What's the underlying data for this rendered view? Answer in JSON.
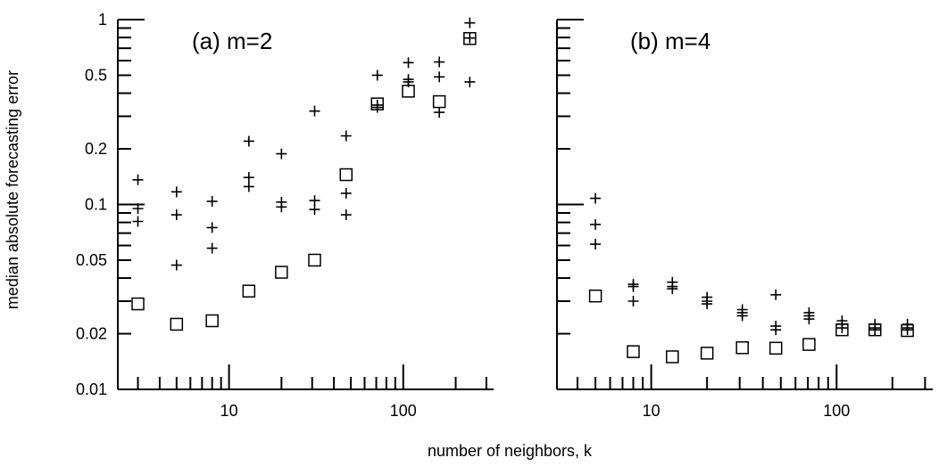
{
  "ylabel": "median absolute forecasting error",
  "xlabel": "number of neighbors, k",
  "colors": {
    "ink": "#000000",
    "background": "#ffffff"
  },
  "chart_data": [
    {
      "type": "scatter",
      "title": "(a) m=2",
      "xscale": "log",
      "yscale": "log",
      "xlim": [
        2.3,
        330
      ],
      "ylim": [
        0.01,
        1
      ],
      "x_ticks": [
        10,
        100
      ],
      "x_tick_labels": [
        "10",
        "100"
      ],
      "y_ticks": [
        1,
        0.5,
        0.2,
        0.1,
        0.05,
        0.02,
        0.01
      ],
      "y_tick_labels": [
        "1",
        "0.5",
        "0.2",
        "0.1",
        "0.05",
        "0.02",
        "0.01"
      ],
      "grid": false,
      "series": [
        {
          "marker": "plus",
          "points": [
            [
              3,
              0.136
            ],
            [
              3,
              0.095
            ],
            [
              3,
              0.081
            ],
            [
              5,
              0.117
            ],
            [
              5,
              0.088
            ],
            [
              5,
              0.047
            ],
            [
              8,
              0.104
            ],
            [
              8,
              0.075
            ],
            [
              8,
              0.058
            ],
            [
              13,
              0.22
            ],
            [
              13,
              0.14
            ],
            [
              13,
              0.125
            ],
            [
              20,
              0.188
            ],
            [
              20,
              0.103
            ],
            [
              20,
              0.097
            ],
            [
              31,
              0.32
            ],
            [
              31,
              0.105
            ],
            [
              31,
              0.094
            ],
            [
              47,
              0.235
            ],
            [
              47,
              0.115
            ],
            [
              47,
              0.088
            ],
            [
              71,
              0.5
            ],
            [
              71,
              0.345
            ],
            [
              71,
              0.335
            ],
            [
              107,
              0.585
            ],
            [
              107,
              0.475
            ],
            [
              107,
              0.46
            ],
            [
              161,
              0.59
            ],
            [
              161,
              0.49
            ],
            [
              161,
              0.315
            ],
            [
              241,
              0.96
            ],
            [
              241,
              0.795
            ],
            [
              241,
              0.46
            ]
          ]
        },
        {
          "marker": "square",
          "points": [
            [
              3,
              0.029
            ],
            [
              5,
              0.0225
            ],
            [
              8,
              0.0235
            ],
            [
              13,
              0.034
            ],
            [
              20,
              0.043
            ],
            [
              31,
              0.05
            ],
            [
              47,
              0.145
            ],
            [
              71,
              0.35
            ],
            [
              107,
              0.41
            ],
            [
              161,
              0.36
            ],
            [
              241,
              0.79
            ]
          ]
        }
      ]
    },
    {
      "type": "scatter",
      "title": "(b) m=4",
      "xscale": "log",
      "yscale": "log",
      "xlim": [
        3.1,
        330
      ],
      "ylim": [
        0.01,
        1
      ],
      "x_ticks": [
        10,
        100
      ],
      "x_tick_labels": [
        "10",
        "100"
      ],
      "y_ticks": [],
      "y_tick_labels": [],
      "grid": false,
      "series": [
        {
          "marker": "plus",
          "points": [
            [
              5,
              0.108
            ],
            [
              5,
              0.078
            ],
            [
              5,
              0.061
            ],
            [
              8,
              0.037
            ],
            [
              8,
              0.036
            ],
            [
              8,
              0.03
            ],
            [
              13,
              0.038
            ],
            [
              13,
              0.036
            ],
            [
              13,
              0.035
            ],
            [
              20,
              0.0315
            ],
            [
              20,
              0.03
            ],
            [
              20,
              0.029
            ],
            [
              31,
              0.027
            ],
            [
              31,
              0.026
            ],
            [
              31,
              0.025
            ],
            [
              47,
              0.0325
            ],
            [
              47,
              0.022
            ],
            [
              47,
              0.021
            ],
            [
              71,
              0.026
            ],
            [
              71,
              0.025
            ],
            [
              71,
              0.024
            ],
            [
              107,
              0.0235
            ],
            [
              107,
              0.0225
            ],
            [
              107,
              0.0215
            ],
            [
              161,
              0.0225
            ],
            [
              161,
              0.0215
            ],
            [
              161,
              0.021
            ],
            [
              241,
              0.0225
            ],
            [
              241,
              0.0215
            ],
            [
              241,
              0.021
            ]
          ]
        },
        {
          "marker": "square",
          "points": [
            [
              5,
              0.032
            ],
            [
              8,
              0.016
            ],
            [
              13,
              0.015
            ],
            [
              20,
              0.0157
            ],
            [
              31,
              0.0168
            ],
            [
              47,
              0.0167
            ],
            [
              71,
              0.0175
            ],
            [
              107,
              0.021
            ],
            [
              161,
              0.021
            ],
            [
              241,
              0.0208
            ]
          ]
        }
      ]
    }
  ]
}
